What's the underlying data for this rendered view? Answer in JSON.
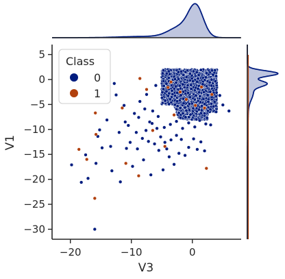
{
  "chart_data": {
    "type": "scatter",
    "title": "",
    "xlabel": "V3",
    "ylabel": "V1",
    "xlim": [
      -23,
      8
    ],
    "ylim": [
      -32,
      7
    ],
    "xticks": [
      -20,
      -10,
      0
    ],
    "yticks": [
      5,
      0,
      -5,
      -10,
      -15,
      -20,
      -25,
      -30
    ],
    "xtick_labels": [
      "−20",
      "−10",
      "0"
    ],
    "ytick_labels": [
      "5",
      "0",
      "−5",
      "−10",
      "−15",
      "−20",
      "−25",
      "−30"
    ],
    "grid": false,
    "legend": {
      "title": "Class",
      "placement": "top-left",
      "entries": [
        {
          "label": "0",
          "color": "#001c7f"
        },
        {
          "label": "1",
          "color": "#b1400d"
        }
      ]
    },
    "marginal_plots": {
      "top": {
        "type": "kde",
        "variable": "V3"
      },
      "right": {
        "type": "kde",
        "variable": "V1"
      }
    },
    "dense_cluster": {
      "class": "0",
      "note": "dense blob of class-0 points",
      "x_range": [
        -5,
        4
      ],
      "y_range": [
        -8,
        2
      ]
    },
    "series": [
      {
        "name": "0",
        "color": "#001c7f",
        "points": [
          [
            -19.8,
            -17.1
          ],
          [
            -18.2,
            -20.6
          ],
          [
            -17.5,
            -15.1
          ],
          [
            -17.1,
            -19.8
          ],
          [
            -16.0,
            -30.0
          ],
          [
            -15.8,
            -16.8
          ],
          [
            -15.2,
            -10.1
          ],
          [
            -14.8,
            -13.7
          ],
          [
            -14.0,
            -8.1
          ],
          [
            -13.4,
            -13.4
          ],
          [
            -13.2,
            -18.3
          ],
          [
            -12.8,
            -0.8
          ],
          [
            -12.5,
            -3.1
          ],
          [
            -11.8,
            -20.5
          ],
          [
            -11.2,
            -5.2
          ],
          [
            -10.8,
            -13.8
          ],
          [
            -10.5,
            -9.2
          ],
          [
            -10.2,
            -12.6
          ],
          [
            -9.8,
            -17.4
          ],
          [
            -9.2,
            -10.6
          ],
          [
            -9.0,
            -13.9
          ],
          [
            -8.6,
            -4.4
          ],
          [
            -8.2,
            -11.8
          ],
          [
            -8.0,
            -16.1
          ],
          [
            -7.6,
            -10.2
          ],
          [
            -7.2,
            -12.4
          ],
          [
            -7.0,
            -8.5
          ],
          [
            -6.8,
            -19.1
          ],
          [
            -6.5,
            -6.3
          ],
          [
            -6.2,
            -12.9
          ],
          [
            -5.8,
            -9.8
          ],
          [
            -5.5,
            -14.2
          ],
          [
            -5.2,
            -11.5
          ],
          [
            -4.8,
            -18.1
          ],
          [
            -4.5,
            -12.6
          ],
          [
            -4.2,
            -13.9
          ],
          [
            -3.8,
            -15.5
          ],
          [
            -3.5,
            -12.1
          ],
          [
            -3.0,
            -17.0
          ],
          [
            -2.6,
            -11.2
          ],
          [
            -2.2,
            -14.8
          ],
          [
            -1.8,
            -12.0
          ],
          [
            -1.2,
            -15.2
          ],
          [
            -0.6,
            -13.6
          ],
          [
            0.2,
            -11.9
          ],
          [
            0.8,
            -14.0
          ],
          [
            1.4,
            -12.5
          ],
          [
            2.0,
            -14.3
          ],
          [
            3.0,
            -9.1
          ],
          [
            5.0,
            -5.1
          ],
          [
            6.0,
            -6.3
          ],
          [
            4.5,
            -3.2
          ],
          [
            -6.0,
            -1.2
          ],
          [
            -7.5,
            -3.0
          ],
          [
            -9.5,
            -6.8
          ],
          [
            -11.0,
            -8.5
          ],
          [
            -8.8,
            -7.6
          ],
          [
            -7.8,
            -5.9
          ],
          [
            -6.6,
            -8.8
          ],
          [
            -5.6,
            -7.4
          ],
          [
            -4.6,
            -9.6
          ],
          [
            -3.6,
            -9.0
          ],
          [
            -2.6,
            -8.4
          ],
          [
            -1.6,
            -9.8
          ],
          [
            -0.6,
            -8.7
          ],
          [
            0.4,
            -9.5
          ],
          [
            1.2,
            -8.2
          ],
          [
            2.2,
            -8.9
          ],
          [
            -15.5,
            -11.4
          ],
          [
            -12.0,
            -10.6
          ]
        ]
      },
      {
        "name": "1",
        "color": "#b1400d",
        "points": [
          [
            -18.6,
            -14.0
          ],
          [
            -17.3,
            -16.0
          ],
          [
            -16.0,
            -23.8
          ],
          [
            -15.9,
            -6.7
          ],
          [
            -15.8,
            -11.0
          ],
          [
            -11.5,
            -5.7
          ],
          [
            -10.9,
            -16.8
          ],
          [
            -8.8,
            -19.3
          ],
          [
            -8.6,
            0.2
          ],
          [
            -7.5,
            -2.0
          ],
          [
            -6.5,
            -10.2
          ],
          [
            -4.5,
            -13.4
          ],
          [
            -4.0,
            -1.6
          ],
          [
            -3.0,
            -7.1
          ],
          [
            0.5,
            -5.2
          ],
          [
            2.0,
            -5.7
          ],
          [
            2.3,
            -17.8
          ],
          [
            3.2,
            -3.0
          ]
        ]
      }
    ]
  }
}
